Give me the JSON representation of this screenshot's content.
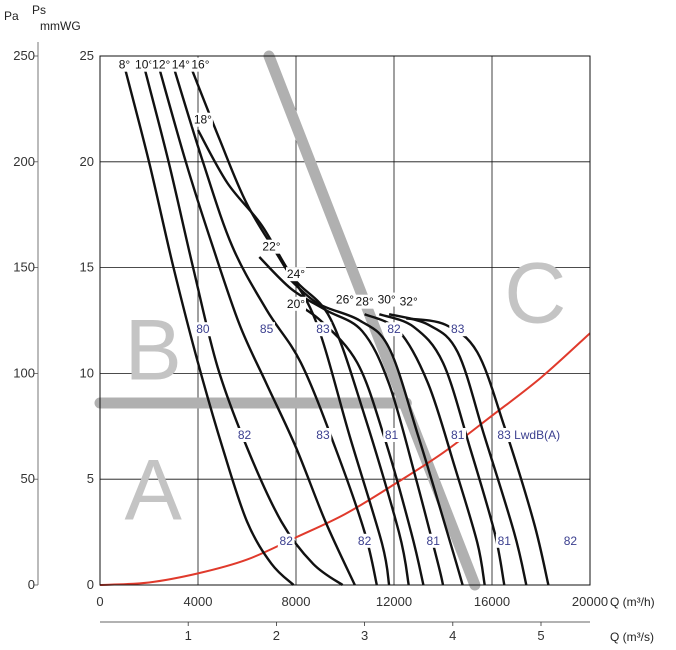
{
  "chart_data": {
    "type": "line",
    "axes": {
      "q_m3h": {
        "label": "Q (m³/h)",
        "range": [
          0,
          20000
        ],
        "ticks": [
          "0",
          "4000",
          "8000",
          "12000",
          "16000",
          "20000"
        ]
      },
      "q_m3s": {
        "label": "Q (m³/s)",
        "ticks": [
          "1",
          "2",
          "3",
          "4",
          "5"
        ]
      },
      "ps_mmwg": {
        "label_ps": "Ps",
        "label_unit": "mmWG",
        "range": [
          0,
          25
        ],
        "ticks": [
          "0",
          "5",
          "10",
          "15",
          "20",
          "25"
        ]
      },
      "ps_pa": {
        "label": "Pa",
        "range": [
          0,
          250
        ],
        "ticks": [
          "0",
          "50",
          "100",
          "150",
          "200",
          "250"
        ]
      }
    },
    "grid": true,
    "series": [
      {
        "name": "8°",
        "points": [
          [
            1000,
            24.5
          ],
          [
            2000,
            20
          ],
          [
            3000,
            15
          ],
          [
            4000,
            10.5
          ],
          [
            5000,
            6.5
          ],
          [
            6000,
            3
          ],
          [
            7000,
            1
          ],
          [
            7900,
            0
          ]
        ]
      },
      {
        "name": "10°",
        "points": [
          [
            1800,
            24.5
          ],
          [
            2800,
            20
          ],
          [
            3800,
            15
          ],
          [
            4800,
            10.3
          ],
          [
            6000,
            6.5
          ],
          [
            7400,
            3
          ],
          [
            8700,
            1
          ],
          [
            9900,
            0
          ]
        ]
      },
      {
        "name": "12°",
        "points": [
          [
            2400,
            24.5
          ],
          [
            3500,
            20
          ],
          [
            4600,
            16
          ],
          [
            5700,
            12.3
          ],
          [
            6800,
            9.5
          ],
          [
            8000,
            6.5
          ],
          [
            9200,
            3
          ],
          [
            10400,
            0
          ]
        ]
      },
      {
        "name": "14°",
        "points": [
          [
            3000,
            24.5
          ],
          [
            4200,
            20
          ],
          [
            5400,
            16
          ],
          [
            6800,
            13
          ],
          [
            8200,
            10.5
          ],
          [
            9600,
            6.5
          ],
          [
            10800,
            2.5
          ],
          [
            11300,
            0
          ]
        ]
      },
      {
        "name": "16°",
        "points": [
          [
            3700,
            24.5
          ],
          [
            4900,
            21
          ],
          [
            6000,
            18
          ],
          [
            7400,
            15.3
          ],
          [
            8800,
            12.5
          ],
          [
            10200,
            7
          ],
          [
            11500,
            2
          ],
          [
            11800,
            0
          ]
        ]
      },
      {
        "name": "18°",
        "points": [
          [
            4000,
            21.5
          ],
          [
            5200,
            19
          ],
          [
            6600,
            17
          ],
          [
            7900,
            14.5
          ],
          [
            9400,
            12.6
          ],
          [
            10800,
            8
          ],
          [
            12200,
            2.5
          ],
          [
            12600,
            0
          ]
        ]
      },
      {
        "name": "20°",
        "points": [
          [
            7700,
            13.5
          ],
          [
            9000,
            12.5
          ],
          [
            10500,
            10.5
          ],
          [
            11600,
            7
          ],
          [
            12700,
            2.5
          ],
          [
            13200,
            0
          ]
        ]
      },
      {
        "name": "22°",
        "points": [
          [
            6500,
            15.5
          ],
          [
            7800,
            14
          ],
          [
            9200,
            13
          ],
          [
            10700,
            12
          ],
          [
            11800,
            9.5
          ],
          [
            12900,
            5
          ],
          [
            13800,
            1
          ],
          [
            14000,
            0
          ]
        ]
      },
      {
        "name": "24°",
        "points": [
          [
            7700,
            14.5
          ],
          [
            8900,
            13.3
          ],
          [
            10600,
            12.5
          ],
          [
            11800,
            11.2
          ],
          [
            13000,
            7
          ],
          [
            14300,
            2
          ],
          [
            14800,
            0
          ]
        ]
      },
      {
        "name": "26°",
        "points": [
          [
            10800,
            12.8
          ],
          [
            12200,
            12
          ],
          [
            13400,
            9.5
          ],
          [
            14500,
            5.5
          ],
          [
            15400,
            2
          ],
          [
            15700,
            0
          ]
        ]
      },
      {
        "name": "28°",
        "points": [
          [
            11400,
            12.8
          ],
          [
            12800,
            12.2
          ],
          [
            14000,
            10.5
          ],
          [
            15100,
            6.5
          ],
          [
            16100,
            2.5
          ],
          [
            16500,
            0
          ]
        ]
      },
      {
        "name": "30°",
        "points": [
          [
            11800,
            12.8
          ],
          [
            13400,
            12.3
          ],
          [
            14600,
            11
          ],
          [
            15700,
            7
          ],
          [
            16900,
            2.5
          ],
          [
            17400,
            0
          ]
        ]
      },
      {
        "name": "32°",
        "points": [
          [
            12500,
            12.6
          ],
          [
            14100,
            12.3
          ],
          [
            15400,
            11
          ],
          [
            16500,
            7.5
          ],
          [
            17700,
            3
          ],
          [
            18300,
            0
          ]
        ]
      }
    ],
    "system_curve": {
      "points": [
        [
          0,
          0
        ],
        [
          2000,
          0.12
        ],
        [
          4000,
          0.55
        ],
        [
          6000,
          1.2
        ],
        [
          8000,
          2.25
        ],
        [
          10000,
          3.35
        ],
        [
          12000,
          4.75
        ],
        [
          14000,
          6.25
        ],
        [
          16000,
          8
        ],
        [
          18000,
          9.8
        ],
        [
          20000,
          11.9
        ]
      ]
    },
    "boundaries": [
      {
        "points": [
          [
            0,
            8.6
          ],
          [
            12500,
            8.6
          ]
        ]
      },
      {
        "points": [
          [
            6900,
            25
          ],
          [
            15300,
            0
          ]
        ]
      }
    ],
    "zones": [
      {
        "label": "A",
        "x": 1000,
        "y": 3.1
      },
      {
        "label": "B",
        "x": 1000,
        "y": 9.7
      },
      {
        "label": "C",
        "x": 16500,
        "y": 12.4
      }
    ],
    "angle_labels": [
      {
        "text": "8°",
        "x": 1000,
        "y": 24.4
      },
      {
        "text": "10°",
        "x": 1800,
        "y": 24.4
      },
      {
        "text": "12°",
        "x": 2500,
        "y": 24.4
      },
      {
        "text": "14°",
        "x": 3300,
        "y": 24.4
      },
      {
        "text": "16°",
        "x": 4100,
        "y": 24.4
      },
      {
        "text": "18°",
        "x": 4200,
        "y": 21.8
      },
      {
        "text": "22°",
        "x": 7000,
        "y": 15.8
      },
      {
        "text": "24°",
        "x": 8000,
        "y": 14.5
      },
      {
        "text": "20°",
        "x": 8000,
        "y": 13.1
      },
      {
        "text": "26°",
        "x": 10000,
        "y": 13.3
      },
      {
        "text": "28°",
        "x": 10800,
        "y": 13.2
      },
      {
        "text": "30°",
        "x": 11700,
        "y": 13.3
      },
      {
        "text": "32°",
        "x": 12600,
        "y": 13.2
      }
    ],
    "lw_labels": [
      {
        "text": "80",
        "x": 4200,
        "y": 11.9
      },
      {
        "text": "85",
        "x": 6800,
        "y": 11.9
      },
      {
        "text": "83",
        "x": 9100,
        "y": 11.9
      },
      {
        "text": "82",
        "x": 12000,
        "y": 11.9
      },
      {
        "text": "83",
        "x": 14600,
        "y": 11.9
      },
      {
        "text": "82",
        "x": 5900,
        "y": 6.9
      },
      {
        "text": "83",
        "x": 9100,
        "y": 6.9
      },
      {
        "text": "81",
        "x": 11900,
        "y": 6.9
      },
      {
        "text": "81",
        "x": 14600,
        "y": 6.9
      },
      {
        "text": "83 LwdB(A)",
        "x": 17500,
        "y": 6.9
      },
      {
        "text": "82",
        "x": 7600,
        "y": 1.9
      },
      {
        "text": "82",
        "x": 10800,
        "y": 1.9
      },
      {
        "text": "81",
        "x": 13600,
        "y": 1.9
      },
      {
        "text": "81",
        "x": 16500,
        "y": 1.9
      },
      {
        "text": "82",
        "x": 19200,
        "y": 1.9
      }
    ],
    "colors": {
      "fan_curves": "#111111",
      "system_curve": "#e03a2c",
      "boundary": "#b0b0b0",
      "zone_text": "#c4c4c4",
      "lw_text": "#3b3f8f",
      "grid": "#111111"
    }
  }
}
